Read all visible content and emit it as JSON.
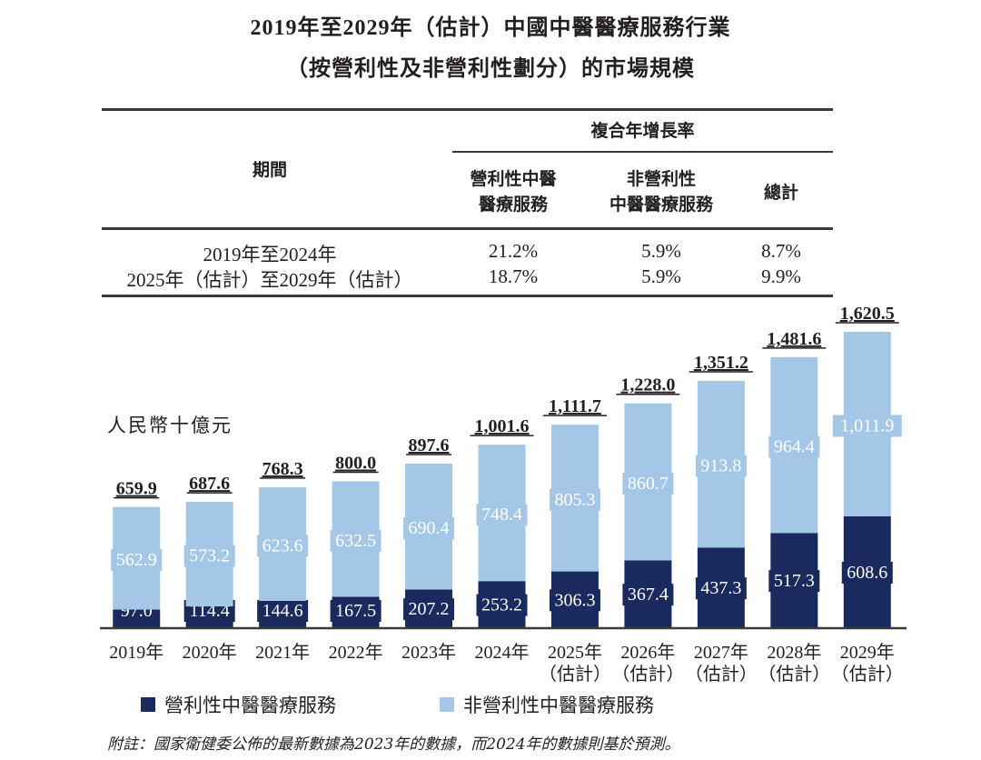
{
  "title": {
    "line1": "2019年至2029年（估計）中國中醫醫療服務行業",
    "line2": "（按營利性及非營利性劃分）的市場規模"
  },
  "cagr_table": {
    "period_header": "期間",
    "group_header": "複合年增長率",
    "col1_header_l1": "營利性中醫",
    "col1_header_l2": "醫療服務",
    "col2_header_l1": "非營利性",
    "col2_header_l2": "中醫醫療服務",
    "col3_header": "總計",
    "rows": [
      {
        "period": "2019年至2024年",
        "for_profit": "21.2%",
        "non_profit": "5.9%",
        "total": "8.7%"
      },
      {
        "period": "2025年（估計）至2029年（估計）",
        "for_profit": "18.7%",
        "non_profit": "5.9%",
        "total": "9.9%"
      }
    ]
  },
  "chart_data": {
    "type": "bar",
    "stacked": true,
    "unit_label": "人民幣十億元",
    "categories": [
      "2019年",
      "2020年",
      "2021年",
      "2022年",
      "2023年",
      "2024年",
      "2025年",
      "2026年",
      "2027年",
      "2028年",
      "2029年"
    ],
    "category_sublabels": [
      "",
      "",
      "",
      "",
      "",
      "",
      "（估計）",
      "（估計）",
      "（估計）",
      "（估計）",
      "（估計）"
    ],
    "series": [
      {
        "name": "營利性中醫醫療服務",
        "color": "#1b2a5e",
        "values": [
          97.0,
          114.4,
          144.6,
          167.5,
          207.2,
          253.2,
          306.3,
          367.4,
          437.3,
          517.3,
          608.6
        ]
      },
      {
        "name": "非營利性中醫醫療服務",
        "color": "#a4c7e8",
        "values": [
          562.9,
          573.2,
          623.6,
          632.5,
          690.4,
          748.4,
          805.3,
          860.7,
          913.8,
          964.4,
          1011.9
        ]
      }
    ],
    "series_labels": [
      [
        "97.0",
        "114.4",
        "144.6",
        "167.5",
        "207.2",
        "253.2",
        "306.3",
        "367.4",
        "437.3",
        "517.3",
        "608.6"
      ],
      [
        "562.9",
        "573.2",
        "623.6",
        "632.5",
        "690.4",
        "748.4",
        "805.3",
        "860.7",
        "913.8",
        "964.4",
        "1,011.9"
      ]
    ],
    "totals": [
      "659.9",
      "687.6",
      "768.3",
      "800.0",
      "897.6",
      "1,001.6",
      "1,111.7",
      "1,228.0",
      "1,351.2",
      "1,481.6",
      "1,620.5"
    ],
    "total_values": [
      659.9,
      687.6,
      768.3,
      800.0,
      897.6,
      1001.6,
      1111.7,
      1228.0,
      1351.2,
      1481.6,
      1620.5
    ],
    "xlabel": "",
    "ylabel": "人民幣十億元",
    "ylim": [
      0,
      1620.5
    ],
    "grid": false,
    "legend_position": "bottom-left"
  },
  "note": "附註：國家衛健委公佈的最新數據為2023年的數據，而2024年的數據則基於預測。"
}
